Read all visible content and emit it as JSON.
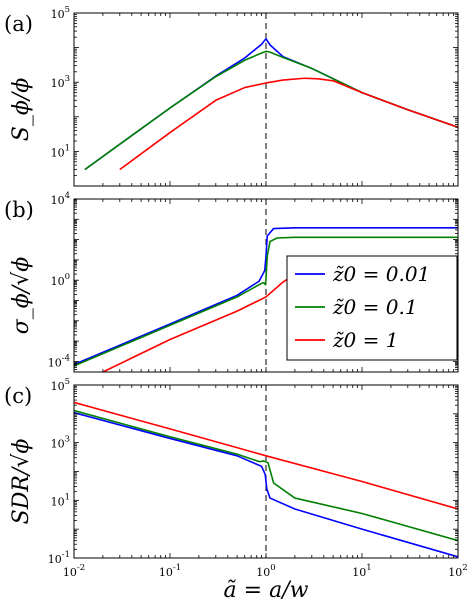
{
  "chart_data": [
    {
      "type": "line",
      "panel_label": "(a)",
      "ylabel": "S_ϕ/ϕ",
      "xlabel": "",
      "xscale": "log",
      "yscale": "log",
      "xlim": [
        0.01,
        100
      ],
      "ylim": [
        1,
        100000
      ],
      "x_ticks": [
        "10^-2",
        "10^-1",
        "10^0",
        "10^1",
        "10^2"
      ],
      "y_ticks": [
        "10^1",
        "10^3",
        "10^5"
      ],
      "vline_x": 1,
      "series": [
        {
          "name": "z̃0 = 0.01",
          "color": "#0000ff",
          "x": [
            0.013,
            0.05,
            0.1,
            0.3,
            0.6,
            0.9,
            1.0,
            1.1,
            1.5,
            3,
            10,
            30,
            100
          ],
          "y": [
            3,
            45,
            180,
            1500,
            5000,
            12500,
            18000,
            12000,
            5500,
            2500,
            500,
            160,
            50
          ]
        },
        {
          "name": "z̃0 = 0.1",
          "color": "#008000",
          "x": [
            0.013,
            0.05,
            0.1,
            0.3,
            0.6,
            0.9,
            1.0,
            1.1,
            1.5,
            3,
            10,
            30,
            100
          ],
          "y": [
            3,
            45,
            180,
            1450,
            4300,
            7000,
            7800,
            7400,
            5200,
            2500,
            500,
            160,
            50
          ]
        },
        {
          "name": "z̃0 = 1",
          "color": "#ff0000",
          "x": [
            0.03,
            0.1,
            0.3,
            0.6,
            1.0,
            1.5,
            2.5,
            3.5,
            5,
            10,
            30,
            100
          ],
          "y": [
            3,
            35,
            300,
            700,
            950,
            1150,
            1300,
            1250,
            1100,
            500,
            160,
            50
          ]
        }
      ]
    },
    {
      "type": "line",
      "panel_label": "(b)",
      "ylabel": "σ_ϕ/√ϕ",
      "xlabel": "",
      "xscale": "log",
      "yscale": "log",
      "xlim": [
        0.01,
        100
      ],
      "ylim": [
        3e-05,
        10000
      ],
      "x_ticks": [
        "10^-2",
        "10^-1",
        "10^0",
        "10^1",
        "10^2"
      ],
      "y_ticks": [
        "10^-4",
        "10^0",
        "10^4"
      ],
      "vline_x": 1,
      "legend": {
        "placement": "bottom-right",
        "entries": [
          "z̃0 = 0.01",
          "z̃0 = 0.1",
          "z̃0 = 1"
        ]
      },
      "series": [
        {
          "name": "z̃0 = 0.01",
          "color": "#0000ff",
          "x": [
            0.01,
            0.1,
            0.5,
            0.85,
            0.97,
            1.0,
            1.03,
            1.2,
            2,
            10,
            100
          ],
          "y": [
            7e-05,
            0.007,
            0.18,
            0.9,
            3,
            15,
            150,
            350,
            380,
            380,
            380
          ]
        },
        {
          "name": "z̃0 = 0.1",
          "color": "#008000",
          "x": [
            0.01,
            0.1,
            0.5,
            0.9,
            0.95,
            0.99,
            1.03,
            1.1,
            1.3,
            2,
            10,
            100
          ],
          "y": [
            6e-05,
            0.006,
            0.15,
            0.7,
            0.75,
            0.6,
            15,
            80,
            120,
            130,
            130,
            130
          ]
        },
        {
          "name": "z̃0 = 1",
          "color": "#ff0000",
          "x": [
            0.02,
            0.1,
            0.5,
            1.0,
            1.5,
            2.5,
            4,
            10,
            100
          ],
          "y": [
            3e-05,
            0.0012,
            0.03,
            0.15,
            0.8,
            4,
            7,
            8,
            8
          ]
        }
      ]
    },
    {
      "type": "line",
      "panel_label": "(c)",
      "ylabel": "SDR/√ϕ",
      "xlabel": "ã = a/w",
      "xscale": "log",
      "yscale": "log",
      "xlim": [
        0.01,
        100
      ],
      "ylim": [
        0.1,
        100000
      ],
      "x_ticks": [
        "10^-2",
        "10^-1",
        "10^0",
        "10^1",
        "10^2"
      ],
      "y_ticks": [
        "10^-1",
        "10^1",
        "10^3",
        "10^5"
      ],
      "vline_x": 1,
      "series": [
        {
          "name": "z̃0 = 0.01",
          "color": "#0000ff",
          "x": [
            0.01,
            0.1,
            0.5,
            0.9,
            0.98,
            1.02,
            1.1,
            2,
            10,
            100
          ],
          "y": [
            11000,
            1400,
            350,
            150,
            80,
            25,
            12,
            5,
            1,
            0.11
          ]
        },
        {
          "name": "z̃0 = 0.1",
          "color": "#008000",
          "x": [
            0.01,
            0.1,
            0.5,
            0.85,
            0.95,
            1.05,
            1.2,
            2,
            10,
            100
          ],
          "y": [
            13000,
            1600,
            400,
            220,
            230,
            200,
            40,
            12,
            3.5,
            0.4
          ]
        },
        {
          "name": "z̃0 = 1",
          "color": "#ff0000",
          "x": [
            0.01,
            0.1,
            1,
            10,
            100
          ],
          "y": [
            25000,
            3000,
            350,
            45,
            5
          ]
        }
      ]
    }
  ]
}
